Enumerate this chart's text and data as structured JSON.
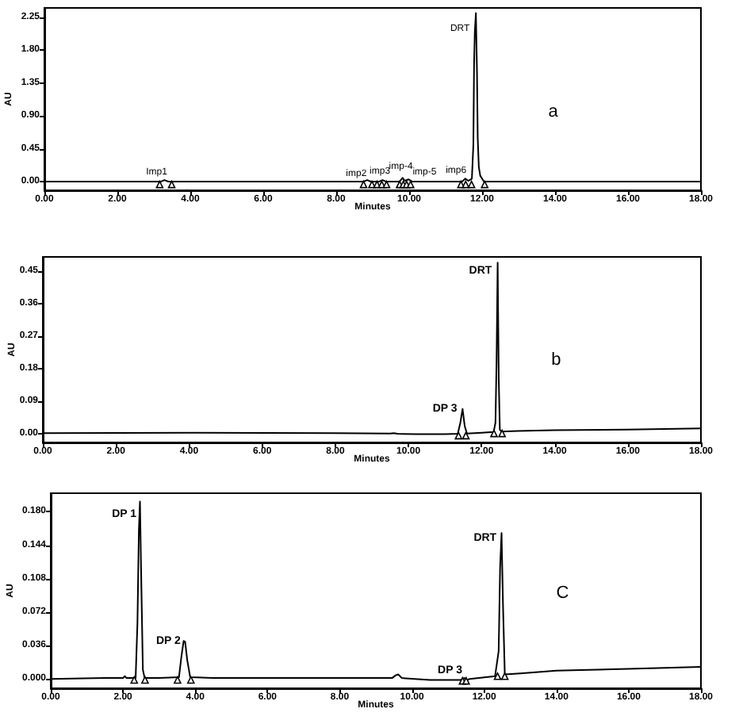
{
  "chart_data": [
    {
      "type": "line",
      "xlabel": "Minutes",
      "ylabel": "AU",
      "xlim": [
        0,
        18
      ],
      "xticks": [
        {
          "value": 0,
          "label": "0.00"
        },
        {
          "value": 2,
          "label": "2.00"
        },
        {
          "value": 4,
          "label": "4.00"
        },
        {
          "value": 6,
          "label": "6.00"
        },
        {
          "value": 8,
          "label": "8.00"
        },
        {
          "value": 10,
          "label": "10.00"
        },
        {
          "value": 12,
          "label": "12.00"
        },
        {
          "value": 14,
          "label": "14.00"
        },
        {
          "value": 16,
          "label": "16.00"
        },
        {
          "value": 18,
          "label": "18.00"
        }
      ],
      "ylim": [
        -0.12,
        2.38
      ],
      "yticks": [
        {
          "value": 0,
          "label": "0.00"
        },
        0.45,
        {
          "value": 0.9,
          "label": "0.90"
        },
        1.35,
        {
          "value": 1.8,
          "label": "1.80"
        },
        2.25
      ],
      "series": [
        {
          "color": "#000000",
          "marker": "none",
          "line_style": "solid",
          "x": [
            0,
            3.2,
            3.29,
            3.4,
            8.75,
            8.85,
            8.95,
            9.18,
            9.27,
            9.36,
            9.74,
            9.82,
            9.88,
            9.98,
            10.08,
            11.45,
            11.54,
            11.62,
            11.72,
            11.76,
            11.78,
            11.8,
            11.83,
            11.86,
            11.88,
            11.91,
            11.95,
            12.05,
            18
          ],
          "values": [
            0,
            0,
            0.02,
            0,
            0,
            0.02,
            0,
            0,
            0.02,
            0,
            0,
            0.05,
            0.01,
            0.03,
            0,
            0,
            0.04,
            0.01,
            0.04,
            0.5,
            1.6,
            2.05,
            2.31,
            1.5,
            0.6,
            0.2,
            0.08,
            0,
            0
          ]
        },
        {
          "type": "scatter",
          "color": "#000000",
          "marker": "triangle",
          "x": [
            3.16,
            3.49,
            8.75,
            8.98,
            9.12,
            9.25,
            9.38,
            9.74,
            9.84,
            9.93,
            10.04,
            11.42,
            11.55,
            11.71,
            12.07
          ],
          "values": [
            -0.04,
            -0.04,
            -0.04,
            -0.04,
            -0.04,
            -0.04,
            -0.04,
            -0.04,
            -0.04,
            -0.04,
            -0.04,
            -0.04,
            -0.04,
            -0.04,
            -0.04
          ]
        }
      ],
      "annotations": [
        "Imp1",
        "imp2",
        "imp3",
        "imp-4",
        "imp-5",
        "imp6",
        "DRT",
        "a"
      ]
    },
    {
      "type": "line",
      "xlabel": "Minutes",
      "ylabel": "AU",
      "xlim": [
        0,
        18
      ],
      "xticks": [
        {
          "value": 0,
          "label": "0.00"
        },
        {
          "value": 2,
          "label": "2.00"
        },
        {
          "value": 4,
          "label": "4.00"
        },
        {
          "value": 6,
          "label": "6.00"
        },
        {
          "value": 8,
          "label": "8.00"
        },
        {
          "value": 10,
          "label": "10.00"
        },
        {
          "value": 12,
          "label": "12.00"
        },
        {
          "value": 14,
          "label": "14.00"
        },
        {
          "value": 16,
          "label": "16.00"
        },
        {
          "value": 18,
          "label": "18.00"
        }
      ],
      "ylim": [
        -0.025,
        0.49
      ],
      "yticks": [
        {
          "value": 0,
          "label": "0.00"
        },
        0.09,
        0.18,
        0.27,
        0.36,
        0.45
      ],
      "series": [
        {
          "color": "#000000",
          "marker": "none",
          "line_style": "solid",
          "x": [
            0,
            4,
            8,
            9.5,
            9.6,
            9.7,
            10.2,
            11,
            11.35,
            11.42,
            11.48,
            11.54,
            11.6,
            12,
            12.33,
            12.38,
            12.41,
            12.44,
            12.47,
            12.5,
            12.55,
            13,
            14,
            16,
            18
          ],
          "values": [
            0.001,
            0.002,
            0.001,
            0,
            0.001,
            -0.001,
            -0.002,
            -0.002,
            -0.001,
            0.03,
            0.068,
            0.02,
            0,
            0.002,
            0.004,
            0.03,
            0.2,
            0.474,
            0.15,
            0.01,
            0.005,
            0.007,
            0.009,
            0.011,
            0.014
          ]
        },
        {
          "type": "scatter",
          "color": "#000000",
          "marker": "triangle",
          "x": [
            11.37,
            11.57,
            12.34,
            12.56
          ],
          "values": [
            -0.006,
            -0.006,
            0,
            0
          ]
        }
      ],
      "annotations": [
        "DP 3",
        "DRT",
        "b"
      ]
    },
    {
      "type": "line",
      "xlabel": "Minutes",
      "ylabel": "AU",
      "xlim": [
        0,
        18
      ],
      "xticks": [
        {
          "value": 0,
          "label": "0.00"
        },
        {
          "value": 2,
          "label": "2.00"
        },
        {
          "value": 4,
          "label": "4.00"
        },
        {
          "value": 6,
          "label": "6.00"
        },
        {
          "value": 8,
          "label": "8.00"
        },
        {
          "value": 10,
          "label": "10.00"
        },
        {
          "value": 12,
          "label": "12.00"
        },
        {
          "value": 14,
          "label": "14.00"
        },
        {
          "value": 16,
          "label": "16.00"
        },
        {
          "value": 18,
          "label": "18.00"
        }
      ],
      "ylim": [
        -0.01,
        0.2
      ],
      "yticks": [
        {
          "value": 0,
          "label": "0.000"
        },
        0.036,
        0.072,
        0.108,
        0.144,
        {
          "value": 0.18,
          "label": "0.180"
        }
      ],
      "series": [
        {
          "color": "#000000",
          "marker": "none",
          "line_style": "solid",
          "x": [
            0,
            1.5,
            2.0,
            2.05,
            2.1,
            2.35,
            2.4,
            2.44,
            2.47,
            2.5,
            2.55,
            2.6,
            3.0,
            3.55,
            3.62,
            3.68,
            3.72,
            3.78,
            3.86,
            4.5,
            8,
            9.45,
            9.55,
            9.62,
            9.72,
            10.5,
            11.35,
            11.45,
            11.52,
            11.6,
            12.3,
            12.4,
            12.44,
            12.48,
            12.52,
            12.57,
            13,
            14,
            16,
            18
          ],
          "values": [
            0,
            0.001,
            0.001,
            0.003,
            0.001,
            0.001,
            0.06,
            0.16,
            0.191,
            0.12,
            0.01,
            0.001,
            0.001,
            0.002,
            0.025,
            0.041,
            0.04,
            0.02,
            0.002,
            0.001,
            0.001,
            0.001,
            0.004,
            0.005,
            0.001,
            -0.001,
            -0.001,
            0.001,
            -0.001,
            0,
            0.003,
            0.03,
            0.12,
            0.157,
            0.08,
            0.005,
            0.006,
            0.009,
            0.011,
            0.013
          ]
        },
        {
          "type": "scatter",
          "color": "#000000",
          "marker": "triangle",
          "x": [
            2.31,
            2.61,
            3.51,
            3.88,
            11.4,
            11.5,
            12.37,
            12.57
          ],
          "values": [
            -0.001,
            -0.001,
            -0.001,
            -0.001,
            -0.002,
            -0.002,
            0.003,
            0.003
          ]
        }
      ],
      "annotations": [
        "DP 1",
        "DP 2",
        "DP 3",
        "DRT",
        "C"
      ]
    }
  ]
}
